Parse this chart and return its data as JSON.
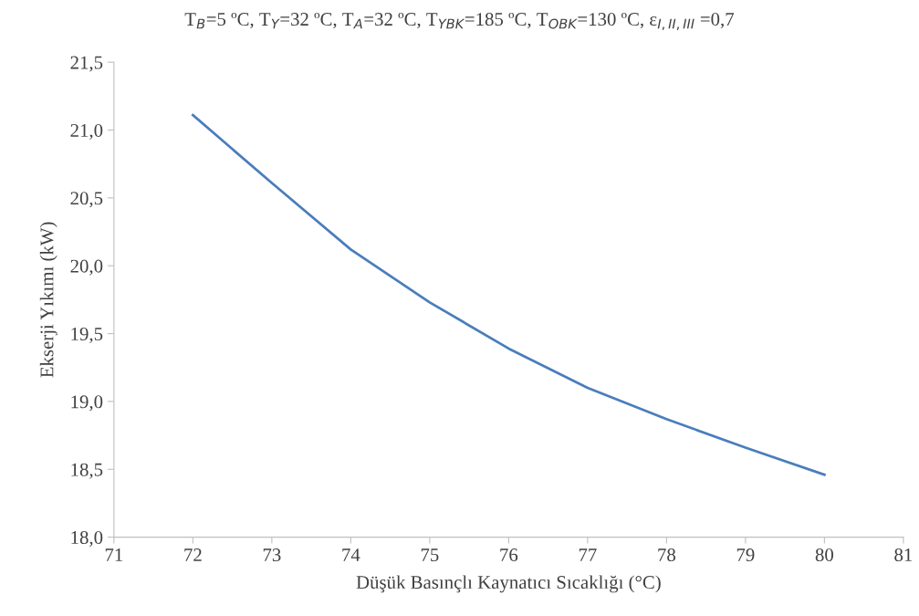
{
  "chart_data": {
    "type": "line",
    "title": "T$_{B}$=5 ºC, T$_{Y}$=32 ºC, T$_{A}$=32 ºC, T$_{YBK}$=185 ºC, T$_{OBK}$=130 ºC, ε$_{I,II,III}$ =0,7",
    "xlabel": "Düşük Basınçlı Kaynatıcı Sıcaklığı (°C)",
    "ylabel": "Ekserji Yıkımı (kW)",
    "x": [
      72,
      73,
      74,
      75,
      76,
      77,
      78,
      79,
      80
    ],
    "series": [
      {
        "color": "#4a7ebb",
        "values": [
          21.11,
          20.61,
          20.12,
          19.73,
          19.39,
          19.1,
          18.87,
          18.66,
          18.46
        ]
      }
    ],
    "xlim": [
      71,
      81
    ],
    "xticks": [
      71,
      72,
      73,
      74,
      75,
      76,
      77,
      78,
      79,
      80,
      81
    ],
    "ylim": [
      18.0,
      21.5
    ],
    "yticks": [
      {
        "value": 18.0,
        "label": "18,0"
      },
      {
        "value": 18.5,
        "label": "18,5"
      },
      {
        "value": 19.0,
        "label": "19,0"
      },
      {
        "value": 19.5,
        "label": "19,5"
      },
      {
        "value": 20.0,
        "label": "20,0"
      },
      {
        "value": 20.5,
        "label": "20,5"
      },
      {
        "value": 21.0,
        "label": "21,0"
      },
      {
        "value": 21.5,
        "label": "21,5"
      }
    ],
    "grid": false,
    "marker": "none",
    "line_style": "solid"
  }
}
